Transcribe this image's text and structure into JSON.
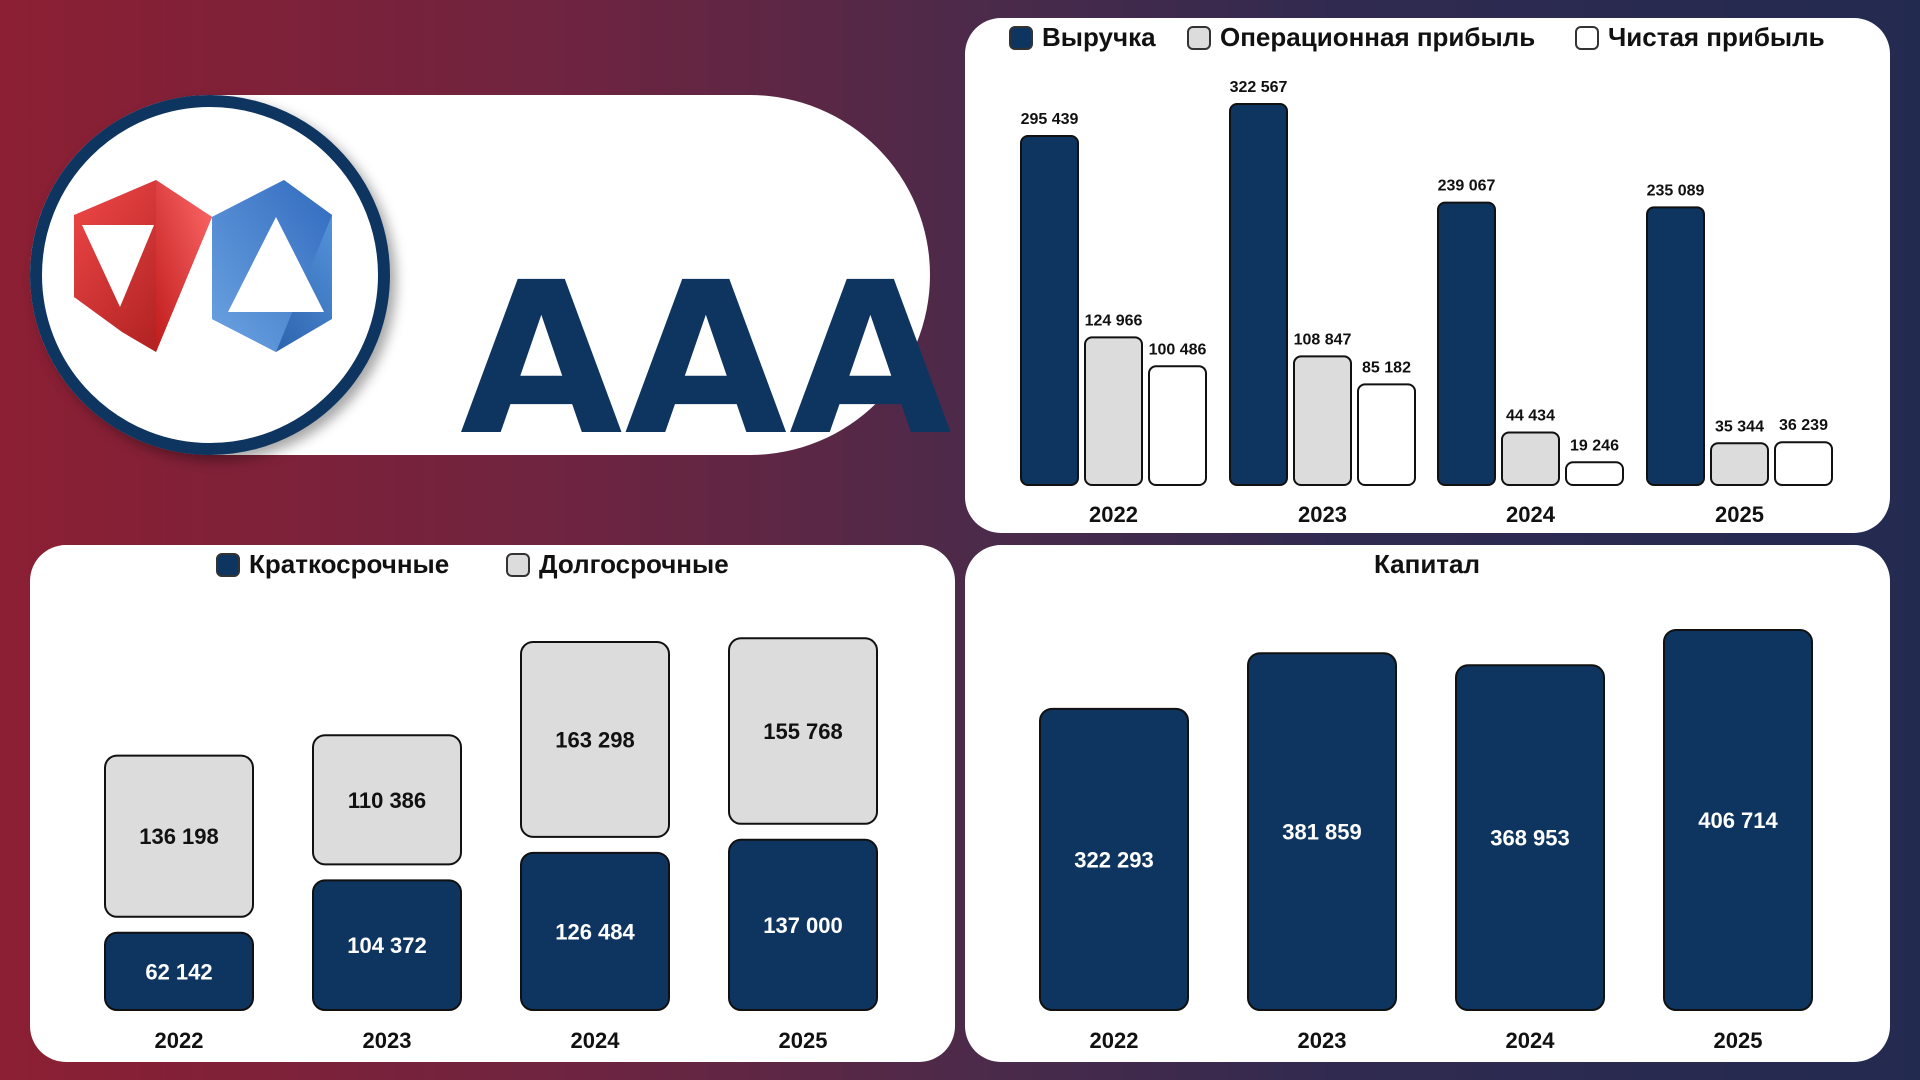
{
  "logo": {
    "text": "AAA"
  },
  "colors": {
    "navy": "#0e3560",
    "light_gray": "#dcdcdc",
    "white": "#ffffff",
    "logo_red": "#d42a2a",
    "logo_blue": "#2f6fc4"
  },
  "chart_data": [
    {
      "type": "bar",
      "categories": [
        "2022",
        "2023",
        "2024",
        "2025"
      ],
      "series": [
        {
          "name": "Выручка",
          "values": [
            295439,
            322567,
            239067,
            235089
          ],
          "labels": [
            "295 439",
            "322 567",
            "239 067",
            "235 089"
          ],
          "color": "#0e3560"
        },
        {
          "name": "Операционная прибыль",
          "values": [
            124966,
            108847,
            44434,
            35344
          ],
          "labels": [
            "124 966",
            "108 847",
            "44 434",
            "35 344"
          ],
          "color": "#dcdcdc"
        },
        {
          "name": "Чистая прибыль",
          "values": [
            100486,
            85182,
            19246,
            36239
          ],
          "labels": [
            "100 486",
            "85 182",
            "19 246",
            "36 239"
          ],
          "color": "#ffffff"
        }
      ],
      "legend_position": "top"
    },
    {
      "type": "bar",
      "stacked": true,
      "categories": [
        "2022",
        "2023",
        "2024",
        "2025"
      ],
      "series": [
        {
          "name": "Краткосрочные",
          "values": [
            62142,
            104372,
            126484,
            137000
          ],
          "labels": [
            "62 142",
            "104 372",
            "126 484",
            "137 000"
          ],
          "color": "#0e3560"
        },
        {
          "name": "Долгосрочные",
          "values": [
            136198,
            110386,
            163298,
            155768
          ],
          "labels": [
            "136 198",
            "110 386",
            "163 298",
            "155 768"
          ],
          "color": "#dcdcdc"
        }
      ],
      "legend_position": "top"
    },
    {
      "type": "bar",
      "title": "Капитал",
      "categories": [
        "2022",
        "2023",
        "2024",
        "2025"
      ],
      "values": [
        322293,
        381859,
        368953,
        406714
      ],
      "labels": [
        "322 293",
        "381 859",
        "368 953",
        "406 714"
      ],
      "color": "#0e3560"
    }
  ]
}
